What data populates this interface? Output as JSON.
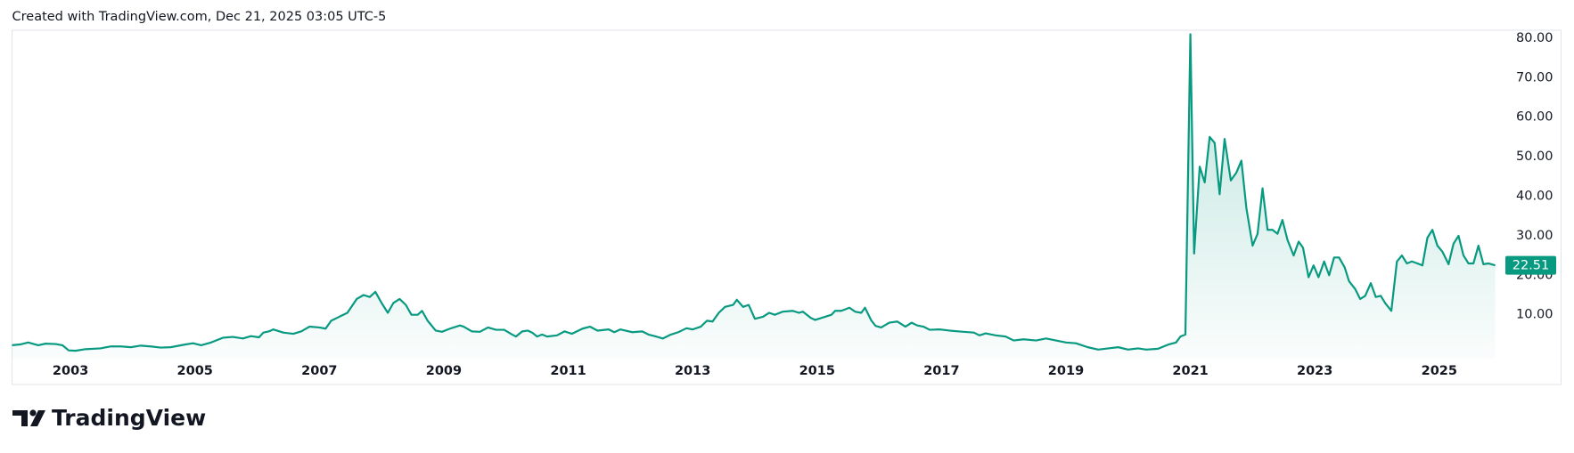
{
  "caption": "Created with TradingView.com, Dec 21, 2025 03:05 UTC-5",
  "brand": "TradingView",
  "chart_data": {
    "type": "area",
    "color": "#089981",
    "grid": false,
    "xlim": [
      2002.06,
      2026.02
    ],
    "xticks": [
      2003,
      2005,
      2007,
      2009,
      2011,
      2013,
      2015,
      2017,
      2019,
      2021,
      2023,
      2025
    ],
    "ylim": [
      -1.1,
      82
    ],
    "yticks": [
      {
        "value": 10,
        "label": "10.00"
      },
      {
        "value": 20,
        "label": "20.00"
      },
      {
        "value": 30,
        "label": "30.00"
      },
      {
        "value": 40,
        "label": "40.00"
      },
      {
        "value": 50,
        "label": "50.00"
      },
      {
        "value": 60,
        "label": "60.00"
      },
      {
        "value": 70,
        "label": "70.00"
      },
      {
        "value": 80,
        "label": "80.00"
      }
    ],
    "x": [
      2002.06,
      2002.19,
      2002.32,
      2002.48,
      2002.6,
      2002.76,
      2002.87,
      2002.97,
      2003.08,
      2003.24,
      2003.48,
      2003.65,
      2003.81,
      2003.97,
      2004.13,
      2004.29,
      2004.45,
      2004.61,
      2004.85,
      2004.97,
      2005.1,
      2005.26,
      2005.45,
      2005.61,
      2005.77,
      2005.9,
      2006.03,
      2006.1,
      2006.19,
      2006.26,
      2006.42,
      2006.58,
      2006.71,
      2006.84,
      2007.0,
      2007.1,
      2007.19,
      2007.32,
      2007.45,
      2007.6,
      2007.71,
      2007.81,
      2007.9,
      2008.0,
      2008.1,
      2008.19,
      2008.29,
      2008.39,
      2008.48,
      2008.58,
      2008.65,
      2008.74,
      2008.87,
      2008.97,
      2009.1,
      2009.26,
      2009.32,
      2009.45,
      2009.58,
      2009.71,
      2009.84,
      2009.97,
      2010.1,
      2010.16,
      2010.26,
      2010.35,
      2010.42,
      2010.5,
      2010.58,
      2010.66,
      2010.82,
      2010.94,
      2011.06,
      2011.23,
      2011.35,
      2011.47,
      2011.65,
      2011.74,
      2011.84,
      2012.03,
      2012.19,
      2012.29,
      2012.39,
      2012.52,
      2012.65,
      2012.77,
      2012.9,
      2013.0,
      2013.13,
      2013.23,
      2013.32,
      2013.42,
      2013.52,
      2013.65,
      2013.71,
      2013.81,
      2013.9,
      2014.0,
      2014.13,
      2014.23,
      2014.32,
      2014.45,
      2014.61,
      2014.71,
      2014.77,
      2014.9,
      2014.97,
      2015.13,
      2015.23,
      2015.29,
      2015.39,
      2015.52,
      2015.61,
      2015.71,
      2015.77,
      2015.87,
      2015.94,
      2016.03,
      2016.16,
      2016.29,
      2016.42,
      2016.52,
      2016.61,
      2016.71,
      2016.81,
      2016.97,
      2017.13,
      2017.35,
      2017.52,
      2017.61,
      2017.71,
      2017.87,
      2018.03,
      2018.16,
      2018.32,
      2018.52,
      2018.68,
      2018.84,
      2019.0,
      2019.16,
      2019.35,
      2019.52,
      2019.68,
      2019.84,
      2020.0,
      2020.16,
      2020.29,
      2020.48,
      2020.65,
      2020.77,
      2020.84,
      2020.92,
      2021.0,
      2021.06,
      2021.15,
      2021.23,
      2021.31,
      2021.39,
      2021.47,
      2021.55,
      2021.65,
      2021.74,
      2021.82,
      2021.9,
      2022.0,
      2022.08,
      2022.16,
      2022.24,
      2022.32,
      2022.4,
      2022.48,
      2022.56,
      2022.66,
      2022.74,
      2022.81,
      2022.9,
      2022.98,
      2023.06,
      2023.15,
      2023.23,
      2023.31,
      2023.39,
      2023.48,
      2023.55,
      2023.65,
      2023.73,
      2023.81,
      2023.9,
      2023.98,
      2024.06,
      2024.13,
      2024.23,
      2024.32,
      2024.4,
      2024.48,
      2024.56,
      2024.65,
      2024.73,
      2024.81,
      2024.89,
      2024.97,
      2025.05,
      2025.15,
      2025.23,
      2025.31,
      2025.39,
      2025.47,
      2025.55,
      2025.63,
      2025.71,
      2025.79,
      2025.9
    ],
    "values": [
      2.3,
      2.5,
      3.0,
      2.3,
      2.7,
      2.6,
      2.3,
      1.0,
      0.9,
      1.3,
      1.5,
      2.0,
      2.0,
      1.8,
      2.2,
      2.0,
      1.7,
      1.8,
      2.5,
      2.8,
      2.3,
      3.0,
      4.2,
      4.4,
      4.0,
      4.6,
      4.3,
      5.5,
      5.8,
      6.3,
      5.5,
      5.2,
      5.8,
      7.0,
      6.8,
      6.5,
      8.5,
      9.5,
      10.5,
      14.0,
      15.0,
      14.5,
      15.8,
      13.0,
      10.5,
      13.0,
      14.0,
      12.5,
      10.0,
      10.0,
      11.0,
      8.5,
      6.0,
      5.7,
      6.5,
      7.3,
      7.0,
      5.8,
      5.7,
      6.8,
      6.2,
      6.2,
      5.0,
      4.5,
      5.8,
      6.0,
      5.5,
      4.5,
      5.0,
      4.5,
      4.8,
      5.8,
      5.2,
      6.5,
      7.0,
      6.0,
      6.3,
      5.6,
      6.3,
      5.6,
      5.8,
      5.0,
      4.6,
      4.0,
      5.0,
      5.6,
      6.6,
      6.3,
      7.0,
      8.5,
      8.3,
      10.5,
      12.0,
      12.5,
      13.8,
      12.0,
      12.5,
      9.0,
      9.5,
      10.5,
      10.0,
      10.8,
      11.0,
      10.5,
      10.8,
      9.2,
      8.7,
      9.5,
      10.0,
      11.0,
      11.0,
      11.8,
      10.8,
      10.5,
      11.8,
      8.6,
      7.2,
      6.8,
      8.0,
      8.3,
      7.0,
      8.0,
      7.3,
      7.0,
      6.2,
      6.3,
      6.0,
      5.7,
      5.5,
      4.8,
      5.3,
      4.8,
      4.5,
      3.5,
      3.8,
      3.5,
      4.0,
      3.5,
      3.0,
      2.8,
      1.8,
      1.2,
      1.5,
      1.8,
      1.2,
      1.5,
      1.2,
      1.4,
      2.5,
      3.0,
      4.5,
      5.0,
      81.0,
      25.5,
      47.5,
      43.5,
      55.0,
      53.5,
      40.5,
      54.5,
      44.0,
      46.0,
      49.0,
      37.0,
      27.5,
      30.5,
      42.0,
      31.5,
      31.5,
      30.5,
      34.0,
      29.0,
      25.0,
      28.5,
      27.0,
      19.5,
      22.5,
      19.5,
      23.5,
      20.0,
      24.5,
      24.5,
      22.0,
      18.5,
      16.5,
      14.0,
      14.8,
      18.0,
      14.5,
      14.8,
      13.0,
      11.0,
      23.5,
      25.0,
      23.0,
      23.5,
      23.0,
      22.5,
      29.5,
      31.5,
      27.5,
      26.0,
      22.8,
      28.0,
      30.0,
      25.0,
      23.0,
      23.0,
      27.5,
      22.8,
      23.0,
      22.51
    ]
  }
}
